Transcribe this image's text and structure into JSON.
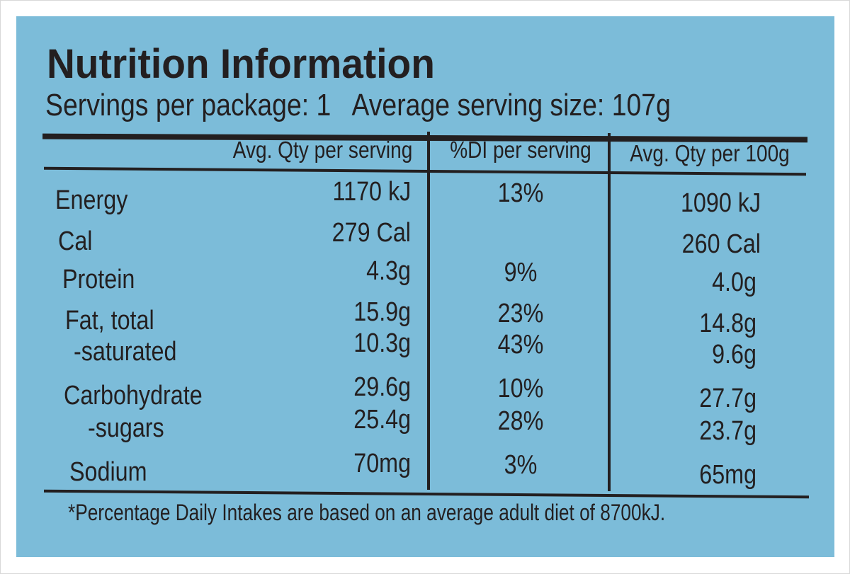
{
  "title": "Nutrition Information",
  "servings_line": "Servings per package: 1   Average serving size: 107g",
  "headers": [
    "Avg. Qty per serving",
    "%DI per serving",
    "Avg. Qty per 100g"
  ],
  "rows": [
    {
      "label": "Energy",
      "per_serving": "1170 kJ",
      "di": "13%",
      "per_100g": "1090 kJ"
    },
    {
      "label": "Cal",
      "per_serving": "279 Cal",
      "di": "",
      "per_100g": "260 Cal"
    },
    {
      "label": "Protein",
      "per_serving": "4.3g",
      "di": "9%",
      "per_100g": "4.0g"
    },
    {
      "label": "Fat, total",
      "per_serving": "15.9g",
      "di": "23%",
      "per_100g": "14.8g"
    },
    {
      "label": "-saturated",
      "per_serving": "10.3g",
      "di": "43%",
      "per_100g": "9.6g"
    },
    {
      "label": "Carbohydrate",
      "per_serving": "29.6g",
      "di": "10%",
      "per_100g": "27.7g"
    },
    {
      "label": "-sugars",
      "per_serving": "25.4g",
      "di": "28%",
      "per_100g": "23.7g"
    },
    {
      "label": "Sodium",
      "per_serving": "70mg",
      "di": "3%",
      "per_100g": "65mg"
    }
  ],
  "footnote": "*Percentage Daily Intakes are based on an average adult diet of 8700kJ.",
  "colors": {
    "background": "#7cbcd9",
    "ink": "#231f20"
  }
}
